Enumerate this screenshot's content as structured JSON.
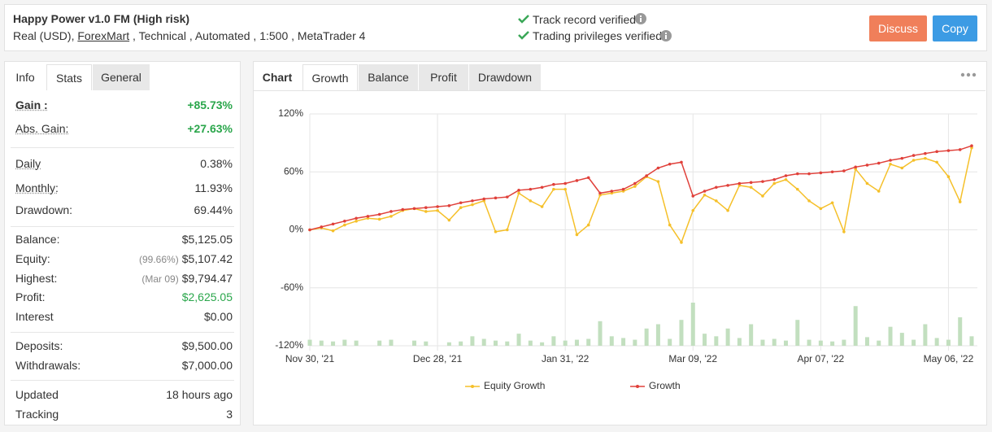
{
  "header": {
    "title": "Happy Power v1.0 FM (High risk)",
    "account": [
      "Real (USD), ",
      "ForexMart",
      " , Technical , Automated , 1:500 , MetaTrader 4"
    ],
    "verified": [
      "Track record verified",
      "Trading privileges verified"
    ],
    "buttons": [
      "Discuss",
      "Copy"
    ]
  },
  "left_tabs": [
    "Info",
    "Stats",
    "General"
  ],
  "stats": {
    "rows": [
      {
        "label": "Gain :",
        "value": "+85.73%"
      },
      {
        "label": "Abs. Gain:",
        "value": "+27.63%"
      },
      {
        "label": "Daily",
        "value": "0.38%"
      },
      {
        "label": "Monthly:",
        "value": "11.93%"
      },
      {
        "label": "Drawdown:",
        "value": "69.44%"
      },
      {
        "label": "Balance:",
        "value": "$5,125.05"
      },
      {
        "label": "Equity:",
        "note": "(99.66%)",
        "value": "$5,107.42"
      },
      {
        "label": "Highest:",
        "note": "(Mar 09)",
        "value": "$9,794.47"
      },
      {
        "label": "Profit:",
        "value": "$2,625.05"
      },
      {
        "label": "Interest",
        "value": "$0.00"
      },
      {
        "label": "Deposits:",
        "value": "$9,500.00"
      },
      {
        "label": "Withdrawals:",
        "value": "$7,000.00"
      },
      {
        "label": "Updated",
        "value": "18 hours ago"
      },
      {
        "label": "Tracking",
        "value": "3"
      }
    ]
  },
  "chart_tabs": {
    "label": "Chart",
    "tabs": [
      "Growth",
      "Balance",
      "Profit",
      "Drawdown"
    ]
  },
  "chart_data": {
    "type": "line",
    "categories": [
      "Nov 30, '21",
      null,
      null,
      null,
      null,
      null,
      null,
      null,
      null,
      null,
      null,
      "Dec 28, '21",
      null,
      null,
      null,
      null,
      null,
      null,
      null,
      null,
      null,
      null,
      "Jan 31, '22",
      null,
      null,
      null,
      null,
      null,
      null,
      null,
      null,
      null,
      null,
      "Mar 09, '22",
      null,
      null,
      null,
      null,
      null,
      null,
      null,
      null,
      null,
      null,
      "Apr 07, '22",
      null,
      null,
      null,
      null,
      null,
      null,
      null,
      null,
      null,
      null,
      "May 06, '22",
      null,
      null
    ],
    "series": [
      {
        "name": "Equity Growth",
        "color": "#f5c02a",
        "values": [
          0,
          2,
          -1,
          5,
          9,
          12,
          11,
          14,
          20,
          22,
          19,
          20,
          10,
          23,
          26,
          30,
          -2,
          0,
          38,
          30,
          24,
          42,
          42,
          -5,
          5,
          36,
          38,
          40,
          45,
          55,
          50,
          5,
          -13,
          20,
          36,
          30,
          20,
          46,
          44,
          35,
          48,
          52,
          42,
          30,
          22,
          28,
          -2,
          63,
          48,
          40,
          68,
          64,
          72,
          74,
          70,
          55,
          29,
          85
        ]
      },
      {
        "name": "Growth",
        "color": "#e0403a",
        "values": [
          0,
          3,
          6,
          9,
          12,
          14,
          16,
          19,
          21,
          22,
          23,
          24,
          25,
          28,
          30,
          32,
          33,
          34,
          41,
          42,
          44,
          47,
          48,
          51,
          54,
          38,
          40,
          42,
          48,
          56,
          64,
          68,
          70,
          35,
          40,
          44,
          46,
          48,
          49,
          50,
          52,
          56,
          58,
          58,
          59,
          60,
          61,
          65,
          67,
          69,
          72,
          74,
          77,
          79,
          81,
          82,
          83,
          87
        ]
      }
    ],
    "bars": {
      "color": "#c2dfbf",
      "vlim": [
        0,
        100
      ],
      "values": [
        14,
        12,
        10,
        14,
        12,
        0,
        12,
        14,
        0,
        12,
        10,
        0,
        8,
        10,
        22,
        16,
        12,
        10,
        28,
        12,
        8,
        22,
        12,
        14,
        16,
        57,
        22,
        18,
        14,
        40,
        50,
        16,
        60,
        100,
        28,
        22,
        40,
        18,
        50,
        14,
        16,
        12,
        60,
        14,
        12,
        10,
        14,
        92,
        20,
        12,
        44,
        30,
        14,
        50,
        18,
        14,
        66,
        22
      ]
    },
    "ylim": [
      -120,
      120
    ],
    "yticks": [
      {
        "value": -120,
        "label": "-120%"
      },
      {
        "value": -60,
        "label": "-60%"
      },
      {
        "value": 0,
        "label": "0%"
      },
      {
        "value": 60,
        "label": "60%"
      },
      {
        "value": 120,
        "label": "120%"
      }
    ],
    "grid": true,
    "legend": "bottom"
  }
}
